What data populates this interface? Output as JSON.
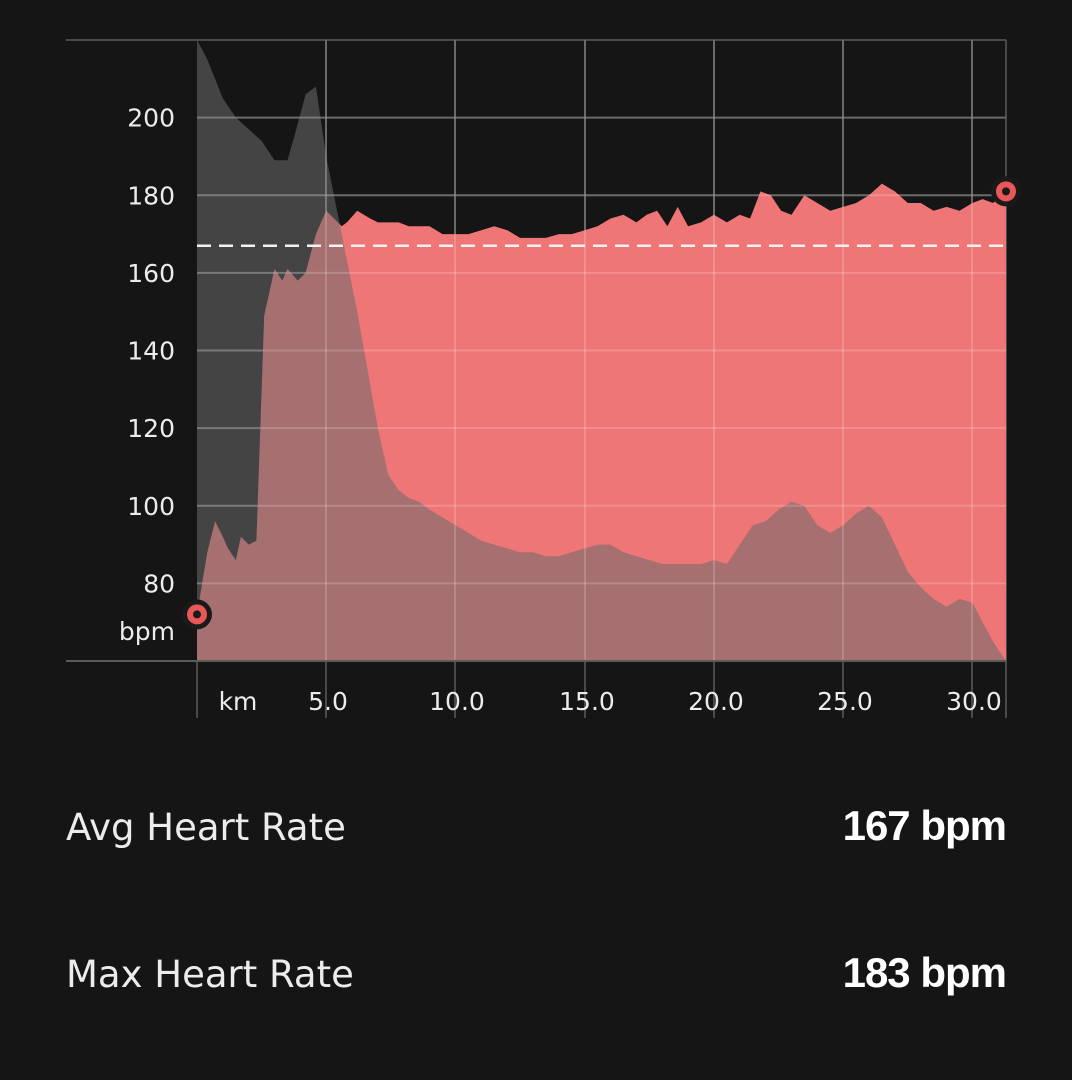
{
  "chart_data": {
    "type": "area",
    "x_unit_label": "km",
    "y_unit_label": "bpm",
    "xlim": [
      0,
      31.3
    ],
    "ylim": [
      60,
      220
    ],
    "x_ticks": [
      "5.0",
      "10.0",
      "15.0",
      "20.0",
      "25.0",
      "30.0"
    ],
    "y_ticks": [
      "80",
      "100",
      "120",
      "140",
      "160",
      "180",
      "200"
    ],
    "average_line": 167,
    "grid": true,
    "series": [
      {
        "colour": "#ee7676",
        "x": [
          0,
          0.4,
          0.7,
          1.0,
          1.2,
          1.5,
          1.7,
          2.0,
          2.3,
          2.6,
          3.0,
          3.3,
          3.5,
          3.9,
          4.2,
          4.6,
          5.0,
          5.6,
          5.8,
          6.2,
          6.7,
          7.0,
          7.5,
          7.8,
          8.2,
          8.6,
          9.0,
          9.5,
          10.0,
          10.5,
          11.0,
          11.5,
          12.0,
          12.5,
          13.0,
          13.5,
          14.0,
          14.5,
          15.0,
          15.5,
          16.0,
          16.5,
          17.0,
          17.4,
          17.8,
          18.2,
          18.6,
          19.0,
          19.5,
          20.0,
          20.5,
          21.0,
          21.4,
          21.8,
          22.2,
          22.6,
          23.0,
          23.5,
          24.0,
          24.5,
          25.0,
          25.5,
          26.0,
          26.5,
          27.0,
          27.5,
          28.0,
          28.5,
          29.0,
          29.5,
          30.0,
          30.4,
          30.8,
          31.3
        ],
        "y": [
          72,
          88,
          96,
          92,
          89,
          86,
          92,
          90,
          91,
          149,
          161,
          158,
          161,
          158,
          160,
          170,
          176,
          172,
          173,
          176,
          174,
          173,
          173,
          173,
          172,
          172,
          172,
          170,
          170,
          170,
          171,
          172,
          171,
          169,
          169,
          169,
          170,
          170,
          171,
          172,
          174,
          175,
          173,
          175,
          176,
          172,
          177,
          172,
          173,
          175,
          173,
          175,
          174,
          181,
          180,
          176,
          175,
          180,
          178,
          176,
          177,
          178,
          180,
          183,
          181,
          178,
          178,
          176,
          177,
          176,
          178,
          179,
          178,
          181
        ]
      },
      {
        "colour": "#6b6b6b",
        "x": [
          0,
          0.4,
          1.0,
          1.5,
          2.0,
          2.5,
          3.0,
          3.5,
          3.8,
          4.2,
          4.6,
          5.0,
          5.6,
          6.2,
          6.6,
          7.0,
          7.4,
          7.8,
          8.2,
          8.6,
          9.0,
          9.5,
          10.0,
          10.5,
          11.0,
          11.5,
          12.0,
          12.5,
          13.0,
          13.5,
          14.0,
          14.5,
          15.0,
          15.5,
          16.0,
          16.5,
          17.0,
          17.5,
          18.0,
          18.5,
          19.0,
          19.5,
          20.0,
          20.5,
          21.0,
          21.5,
          22.0,
          22.5,
          23.0,
          23.5,
          24.0,
          24.5,
          25.0,
          25.5,
          26.0,
          26.5,
          27.0,
          27.5,
          28.0,
          28.5,
          29.0,
          29.5,
          30.0,
          30.4,
          30.8,
          31.3
        ],
        "y": [
          220,
          215,
          205,
          200,
          197,
          194,
          189,
          189,
          196,
          206,
          208,
          190,
          170,
          150,
          135,
          120,
          108,
          104,
          102,
          101,
          99,
          97,
          95,
          93,
          91,
          90,
          89,
          88,
          88,
          87,
          87,
          88,
          89,
          90,
          90,
          88,
          87,
          86,
          85,
          85,
          85,
          85,
          86,
          85,
          90,
          95,
          96,
          99,
          101,
          100,
          95,
          93,
          95,
          98,
          100,
          97,
          90,
          83,
          79,
          76,
          74,
          76,
          75,
          70,
          65,
          60
        ]
      }
    ]
  },
  "stats": {
    "avg_label": "Avg Heart Rate",
    "avg_value": "167 bpm",
    "max_label": "Max Heart Rate",
    "max_value": "183 bpm"
  }
}
